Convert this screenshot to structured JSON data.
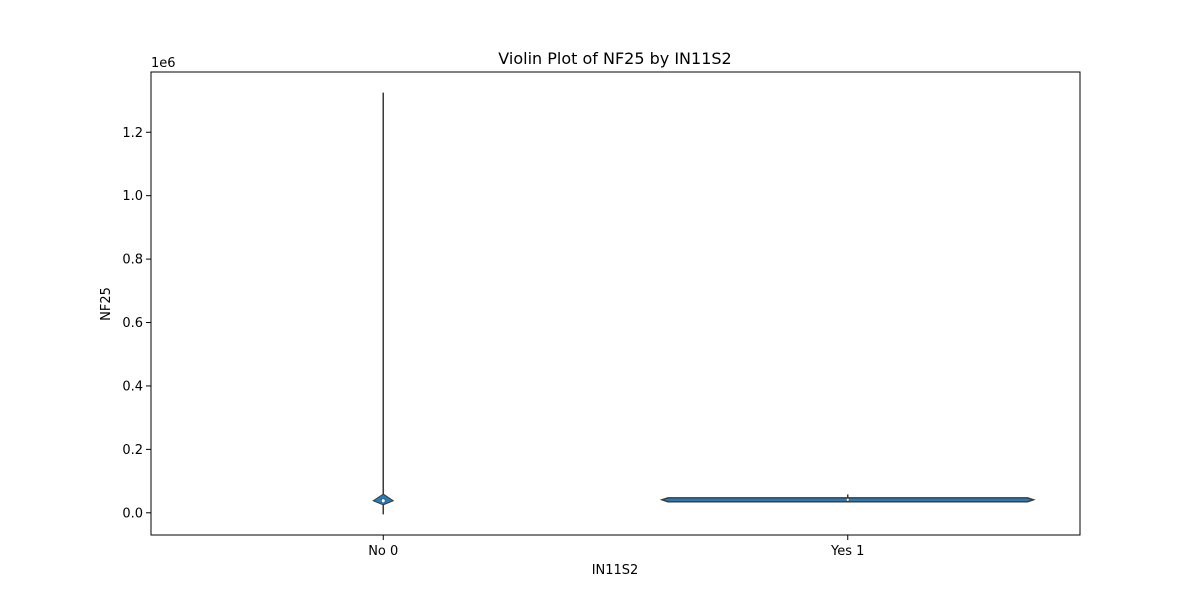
{
  "chart_data": {
    "type": "violin",
    "title": "Violin Plot of NF25 by IN11S2",
    "xlabel": "IN11S2",
    "ylabel": "NF25",
    "y_offset_label": "1e6",
    "categories": [
      "No 0",
      "Yes 1"
    ],
    "ylim": [
      -0.07,
      1.39
    ],
    "y_ticks": [
      0.0,
      0.2,
      0.4,
      0.6,
      0.8,
      1.0,
      1.2
    ],
    "y_tick_labels": [
      "0.0",
      "0.2",
      "0.4",
      "0.6",
      "0.8",
      "1.0",
      "1.2"
    ],
    "series": [
      {
        "category": "No 0",
        "min": -0.005,
        "max": 1.325,
        "q1": 0.033,
        "median": 0.038,
        "q3": 0.044,
        "density_peak": 0.038
      },
      {
        "category": "Yes 1",
        "min": 0.038,
        "max": 0.058,
        "q1": 0.04,
        "median": 0.041,
        "q3": 0.042,
        "density_peak": 0.041
      }
    ],
    "fill_color": "#2a7bb5",
    "line_color": "#3a3a3a",
    "grid": false,
    "legend": "none"
  }
}
